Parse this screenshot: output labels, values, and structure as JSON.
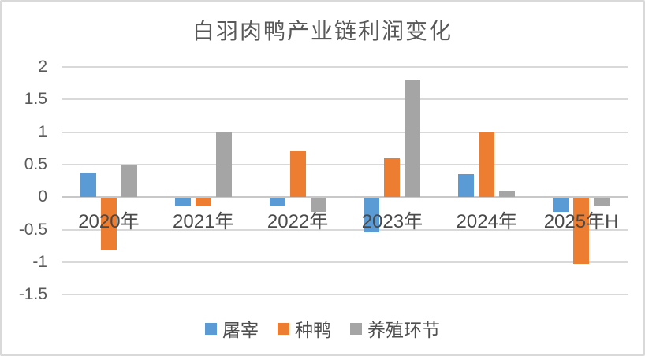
{
  "chart_data": {
    "type": "bar",
    "title": "白羽肉鸭产业链利润变化",
    "categories": [
      "2020年",
      "2021年",
      "2022年",
      "2023年",
      "2024年",
      "2025年H"
    ],
    "series": [
      {
        "name": "屠宰",
        "color": "#5B9BD5",
        "values": [
          0.37,
          -0.12,
          -0.1,
          -0.52,
          0.35,
          -0.2
        ]
      },
      {
        "name": "种鸭",
        "color": "#ED7D31",
        "values": [
          -0.8,
          -0.1,
          0.7,
          0.6,
          1.0,
          -1.0
        ]
      },
      {
        "name": "养殖环节",
        "color": "#A5A5A5",
        "values": [
          0.5,
          1.0,
          -0.2,
          1.8,
          0.1,
          -0.1
        ]
      }
    ],
    "ylim": [
      -1.5,
      2
    ],
    "ytick_labels": [
      "2",
      "1.5",
      "1",
      "0.5",
      "0",
      "-0.5",
      "-1",
      "-1.5"
    ],
    "grid": true,
    "legend_position": "bottom",
    "xlabel": "",
    "ylabel": ""
  },
  "style": {
    "gridline_color": "#D9D9D9",
    "zero_line_color": "#C8C8C8",
    "axis_text_color": "#595959",
    "frame_border_color": "#D9D9D9",
    "background_color": "#FFFFFF"
  }
}
